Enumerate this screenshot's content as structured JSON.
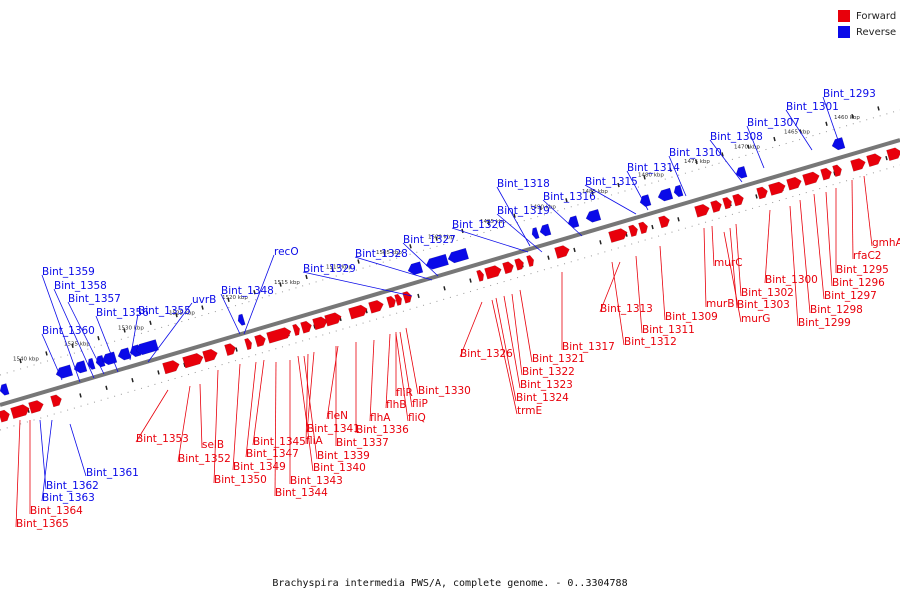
{
  "legend": {
    "forward": {
      "label": "Forward",
      "color": "#e8000b"
    },
    "reverse": {
      "label": "Reverse",
      "color": "#0a0ae8"
    }
  },
  "caption": "Brachyspira intermedia PWS/A, complete genome. - 0..3304788",
  "ruler_top": [
    "1460 kbp",
    "1465 kbp",
    "1470 kbp",
    "1475 kbp",
    "1480 kbp",
    "1485 kbp",
    "1490 kbp",
    "1495 kbp",
    "1500 kbp",
    "1505 kbp",
    "1510 kbp",
    "1515 kbp",
    "1520 kbp",
    "1525 kbp",
    "1530 kbp",
    "1535 kbp",
    "1540 kbp"
  ],
  "reverse_labels": [
    "Bint_1293",
    "Bint_1301",
    "Bint_1307",
    "Bint_1308",
    "Bint_1310",
    "Bint_1314",
    "Bint_1315",
    "Bint_1316",
    "Bint_1318",
    "Bint_1319",
    "Bint_1320",
    "Bint_1327",
    "Bint_1328",
    "Bint_1329",
    "recO",
    "Bint_1348",
    "uvrB",
    "Bint_1355",
    "Bint_1356",
    "Bint_1357",
    "Bint_1358",
    "Bint_1359",
    "Bint_1360",
    "Bint_1361",
    "Bint_1362",
    "Bint_1363"
  ],
  "forward_labels": [
    "gmhA",
    "rfaC2",
    "Bint_1295",
    "Bint_1296",
    "Bint_1297",
    "Bint_1298",
    "Bint_1299",
    "Bint_1300",
    "murC",
    "Bint_1302",
    "murB",
    "Bint_1303",
    "murG",
    "Bint_1309",
    "Bint_1313",
    "Bint_1311",
    "Bint_1312",
    "Bint_1317",
    "Bint_1321",
    "Bint_1322",
    "Bint_1323",
    "Bint_1324",
    "trmE",
    "Bint_1326",
    "Bint_1330",
    "fliR",
    "fliP",
    "flhB",
    "fliQ",
    "flhA",
    "Bint_1336",
    "fleN",
    "Bint_1337",
    "Bint_1341",
    "fliA",
    "Bint_1339",
    "Bint_1340",
    "Bint_1345",
    "Bint_1343",
    "Bint_1347",
    "Bint_1344",
    "Bint_1349",
    "Bint_1350",
    "selB",
    "Bint_1352",
    "Bint_1353",
    "Bint_1364",
    "Bint_1365"
  ]
}
